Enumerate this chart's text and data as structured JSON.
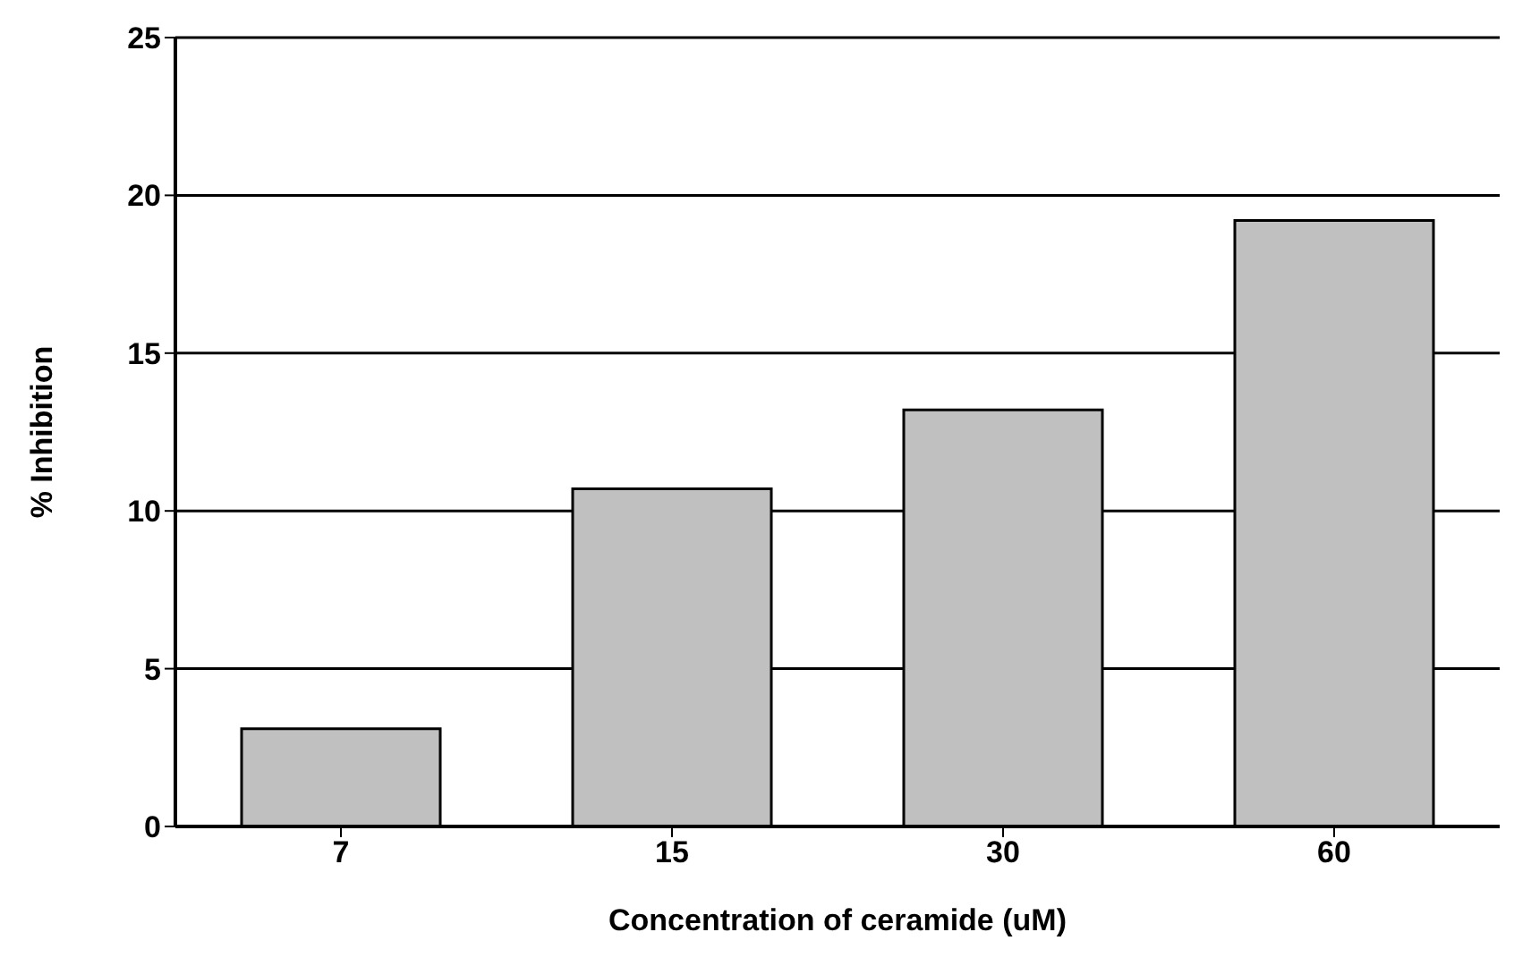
{
  "chart_data": {
    "type": "bar",
    "xlabel": "Concentration  of ceramide  (uM)",
    "ylabel": "% Inhibition",
    "categories": [
      "7",
      "15",
      "30",
      "60"
    ],
    "values": [
      3.1,
      10.7,
      13.2,
      19.2
    ],
    "color": "#c0c0c0",
    "ylim": [
      0,
      25
    ],
    "yticks": [
      0,
      5,
      10,
      15,
      20,
      25
    ],
    "grid": "y"
  }
}
